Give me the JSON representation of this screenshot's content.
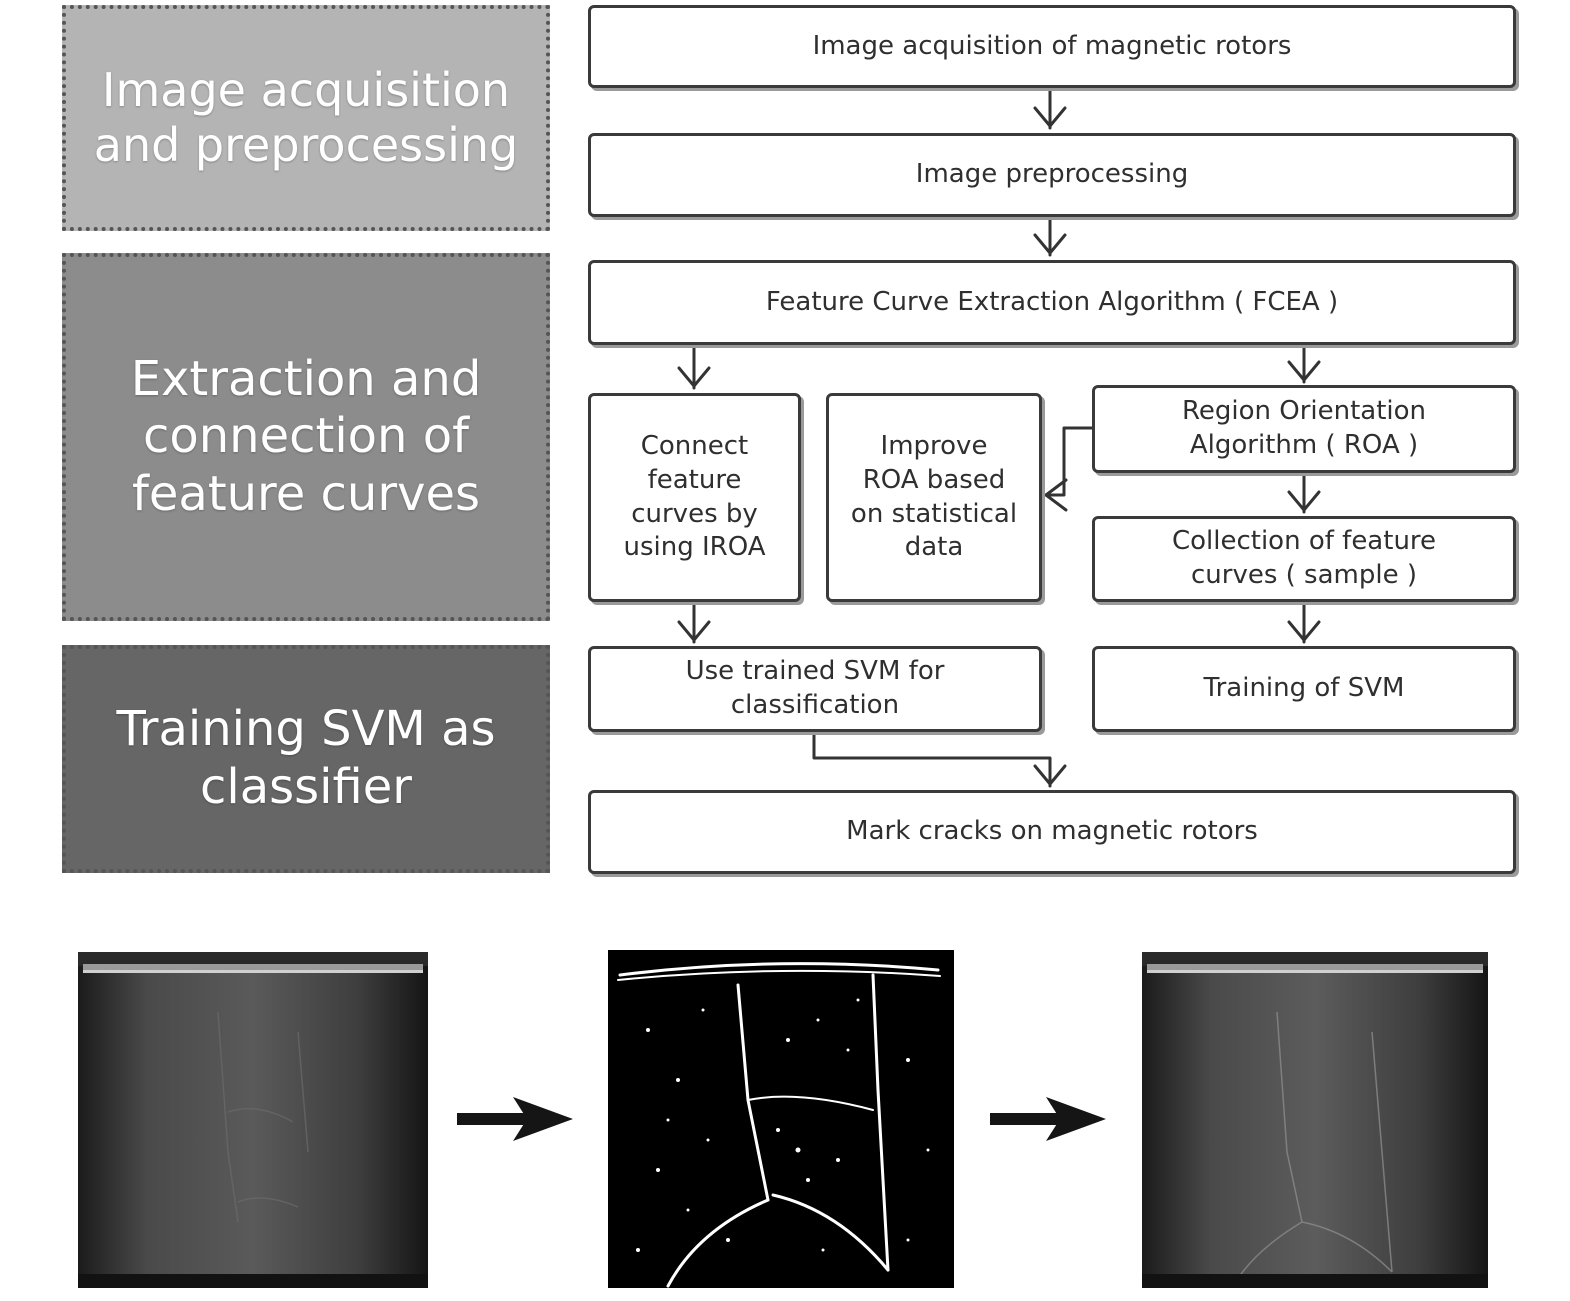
{
  "stages": [
    {
      "text": "Image acquisition\nand preprocessing",
      "color": "#b4b4b4"
    },
    {
      "text": "Extraction and\nconnection of\nfeature curves",
      "color": "#8c8c8c"
    },
    {
      "text": "Training SVM as\nclassifier",
      "color": "#666666"
    }
  ],
  "steps": {
    "acquisition": "Image acquisition of magnetic rotors",
    "preprocessing": "Image preprocessing",
    "fcea": "Feature Curve Extraction Algorithm ( FCEA )",
    "connect": "Connect\nfeature\ncurves by\nusing IROA",
    "improve": "Improve\nROA based\non statistical\ndata",
    "roa": "Region Orientation\nAlgorithm ( ROA )",
    "collection": "Collection of feature\ncurves ( sample )",
    "use_svm": "Use trained SVM for\nclassification",
    "train_svm": "Training of SVM",
    "mark": "Mark cracks on magnetic rotors"
  },
  "colors": {
    "box_border": "#3a3a3a",
    "box_shadow": "#9a9a9a",
    "stage_border": "#555555"
  },
  "photos": [
    {
      "name": "rotor-original-image",
      "kind": "grayscale"
    },
    {
      "name": "rotor-feature-curves-image",
      "kind": "binary"
    },
    {
      "name": "rotor-marked-cracks-image",
      "kind": "grayscale"
    }
  ]
}
